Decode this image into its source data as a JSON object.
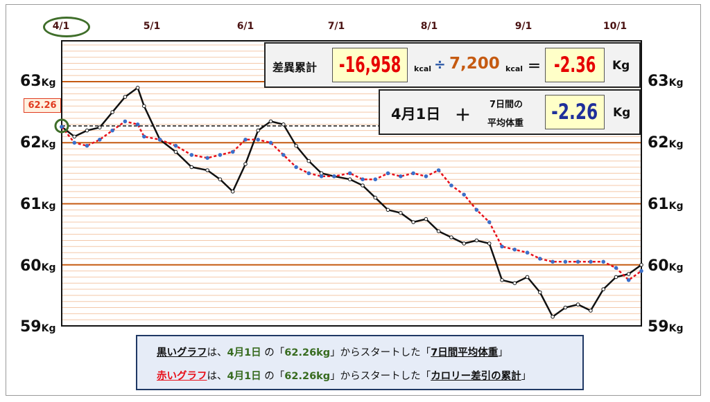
{
  "month_labels": [
    "4/1",
    "5/1",
    "6/1",
    "7/1",
    "8/1",
    "9/1",
    "10/1"
  ],
  "y_axis_left": [
    {
      "value": "63",
      "unit": "Kg"
    },
    {
      "value": "62",
      "unit": "Kg"
    },
    {
      "value": "61",
      "unit": "Kg"
    },
    {
      "value": "60",
      "unit": "Kg"
    },
    {
      "value": "59",
      "unit": "Kg"
    }
  ],
  "y_axis_right": [
    {
      "value": "63",
      "unit": "Kg"
    },
    {
      "value": "62",
      "unit": "Kg"
    },
    {
      "value": "61",
      "unit": "Kg"
    },
    {
      "value": "60",
      "unit": "Kg"
    },
    {
      "value": "59",
      "unit": "Kg"
    }
  ],
  "start_label": "62.26",
  "calc_box": {
    "label": "差異累計",
    "total": "-16,958",
    "unit1": "kcal",
    "divide": "÷",
    "divisor": "7,200",
    "unit2": "kcal",
    "equals": "＝",
    "result": "-2.36",
    "result_unit": "Kg"
  },
  "avg_box": {
    "date": "4月1日",
    "plus": "＋",
    "label_line1": "7日間の",
    "label_line2": "平均体重",
    "value": "-2.26",
    "unit": "Kg"
  },
  "legend": {
    "line1": {
      "name": "黒いグラフ",
      "a": "は、",
      "date": "4月1日",
      "b": " の「",
      "start": "62.26kg",
      "c": "」からスタートした「",
      "what": "7日間平均体重",
      "d": "」"
    },
    "line2": {
      "name": "赤いグラフ",
      "a": "は、",
      "date": "4月1日",
      "b": " の「",
      "start": "62.26kg",
      "c": "」からスタートした「",
      "what": "カロリー差引の累計",
      "d": "」"
    }
  },
  "colors": {
    "black_series": "#111111",
    "red_series": "#e8101a",
    "red_series_dots": "#3a6fc9",
    "grid_major": "#c55a11",
    "grid_minor": "#f4c8a8",
    "start_marker": "#3f6e2a",
    "baseline_dashed": "#111111"
  },
  "chart_data": {
    "type": "line",
    "x_range": [
      "4/1",
      "10/1"
    ],
    "ylim": [
      59,
      63.8
    ],
    "x_ticks": [
      "4/1",
      "5/1",
      "6/1",
      "7/1",
      "8/1",
      "9/1",
      "10/1"
    ],
    "y_ticks": [
      63,
      62,
      61,
      60,
      59
    ],
    "start_value": 62.26,
    "series": [
      {
        "color": "black",
        "x": [
          "4/1",
          "4/5",
          "4/9",
          "4/13",
          "4/17",
          "4/21",
          "4/25",
          "4/27",
          "5/2",
          "5/7",
          "5/12",
          "5/17",
          "5/21",
          "5/25",
          "5/29",
          "6/2",
          "6/6",
          "6/10",
          "6/14",
          "6/18",
          "6/22",
          "6/26",
          "7/1",
          "7/5",
          "7/9",
          "7/13",
          "7/17",
          "7/21",
          "7/25",
          "7/29",
          "8/2",
          "8/6",
          "8/10",
          "8/14",
          "8/18",
          "8/22",
          "8/26",
          "8/30",
          "9/3",
          "9/7",
          "9/11",
          "9/15",
          "9/19",
          "9/23",
          "9/27",
          "10/1"
        ],
        "values": [
          62.26,
          62.1,
          62.2,
          62.25,
          62.5,
          62.75,
          62.9,
          62.6,
          62.05,
          61.85,
          61.6,
          61.55,
          61.4,
          61.2,
          61.65,
          62.2,
          62.35,
          62.3,
          61.95,
          61.7,
          61.5,
          61.45,
          61.4,
          61.3,
          61.1,
          60.9,
          60.85,
          60.7,
          60.75,
          60.55,
          60.45,
          60.35,
          60.4,
          60.35,
          59.75,
          59.7,
          59.8,
          59.55,
          59.15,
          59.3,
          59.35,
          59.25,
          59.6,
          59.8,
          59.85,
          60.0
        ]
      },
      {
        "color": "red",
        "x": [
          "4/1",
          "4/5",
          "4/9",
          "4/13",
          "4/17",
          "4/21",
          "4/25",
          "4/27",
          "5/2",
          "5/7",
          "5/12",
          "5/17",
          "5/21",
          "5/25",
          "5/29",
          "6/2",
          "6/6",
          "6/10",
          "6/14",
          "6/18",
          "6/22",
          "6/26",
          "7/1",
          "7/5",
          "7/9",
          "7/13",
          "7/17",
          "7/21",
          "7/25",
          "7/29",
          "8/2",
          "8/6",
          "8/10",
          "8/14",
          "8/18",
          "8/22",
          "8/26",
          "8/30",
          "9/3",
          "9/7",
          "9/11",
          "9/15",
          "9/19",
          "9/23",
          "9/27",
          "10/1"
        ],
        "values": [
          62.26,
          62.0,
          61.95,
          62.05,
          62.2,
          62.35,
          62.3,
          62.1,
          62.05,
          61.95,
          61.8,
          61.75,
          61.8,
          61.85,
          62.05,
          62.05,
          62.0,
          61.8,
          61.6,
          61.5,
          61.45,
          61.45,
          61.5,
          61.4,
          61.4,
          61.5,
          61.45,
          61.5,
          61.45,
          61.55,
          61.3,
          61.15,
          60.9,
          60.7,
          60.3,
          60.25,
          60.2,
          60.1,
          60.05,
          60.05,
          60.05,
          60.05,
          60.05,
          59.95,
          59.75,
          59.9
        ]
      }
    ]
  }
}
